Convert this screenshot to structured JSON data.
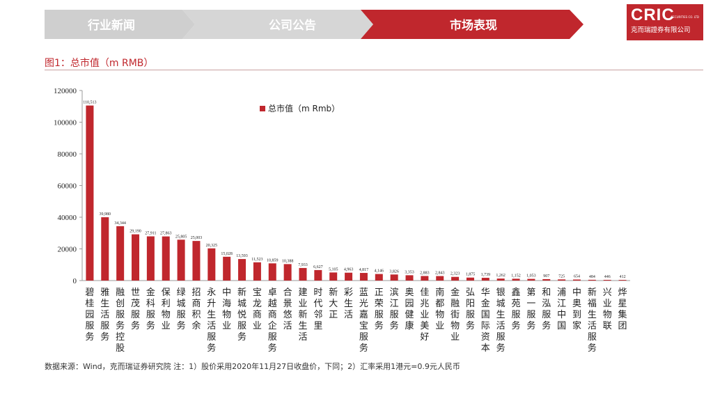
{
  "nav": {
    "tabs": [
      {
        "label": "行业新闻",
        "active": false
      },
      {
        "label": "公司公告",
        "active": false
      },
      {
        "label": "市场表现",
        "active": true
      }
    ],
    "colors": {
      "inactive": "#cfcfcf",
      "active": "#c0272d",
      "text": "#ffffff"
    }
  },
  "logo": {
    "main": "CRIC",
    "small": "SECURITIES CO. LTD",
    "sub": "克而瑞證券有限公司"
  },
  "figure_title": "图1：总市值（m RMB）",
  "footnote": "数据来源：Wind，克而瑞证券研究院   注：1）股价采用2020年11月27日收盘价，下同；2）汇率采用1港元=0.9元人民币",
  "chart_data": {
    "type": "bar",
    "legend": "总市值（m Rmb）",
    "legend_position": "top-right",
    "color": "#c0272d",
    "ylim": [
      0,
      120000
    ],
    "yticks": [
      0,
      20000,
      40000,
      60000,
      80000,
      100000,
      120000
    ],
    "grid": false,
    "categories": [
      "碧桂园服务",
      "雅生活服务",
      "融创服务控股",
      "世茂服务",
      "金科服务",
      "保利物业",
      "绿城服务",
      "招商积余",
      "永升生活服务",
      "中海物业",
      "新城悦服务",
      "宝龙商业",
      "卓越商企服务",
      "合景悠活",
      "建业新生活",
      "时代邻里",
      "新大正",
      "彩生活",
      "蓝光嘉宝服务",
      "正荣服务",
      "滨江服务",
      "奥园健康",
      "佳兆业美好",
      "南都物业",
      "金融街物业",
      "弘阳服务",
      "华金国际资本",
      "银城生活服务",
      "鑫苑服务",
      "第一服务",
      "和泓服务",
      "浦江中国",
      "中奥到家",
      "新福生活服务",
      "兴业物联",
      "烨星集团"
    ],
    "values": [
      110513,
      39980,
      34344,
      29190,
      27911,
      27863,
      25805,
      25003,
      20325,
      15028,
      13593,
      11523,
      10859,
      10388,
      7933,
      6627,
      5105,
      4963,
      4817,
      4146,
      3826,
      3353,
      2883,
      2843,
      2323,
      1875,
      1739,
      1262,
      1152,
      1053,
      907,
      725,
      654,
      484,
      446,
      412
    ],
    "labels": [
      "110,513",
      "39,980",
      "34,344",
      "29,190",
      "27,911",
      "27,863",
      "25,805",
      "25,003",
      "20,325",
      "15,028",
      "13,593",
      "11,523",
      "10,859",
      "10,388",
      "7,933",
      "6,627",
      "5,105",
      "4,963",
      "4,817",
      "4,146",
      "3,826",
      "3,353",
      "2,883",
      "2,843",
      "2,323",
      "1,875",
      "1,739",
      "1,262",
      "1,152",
      "1,053",
      "907",
      "725",
      "654",
      "484",
      "446",
      "412"
    ]
  }
}
